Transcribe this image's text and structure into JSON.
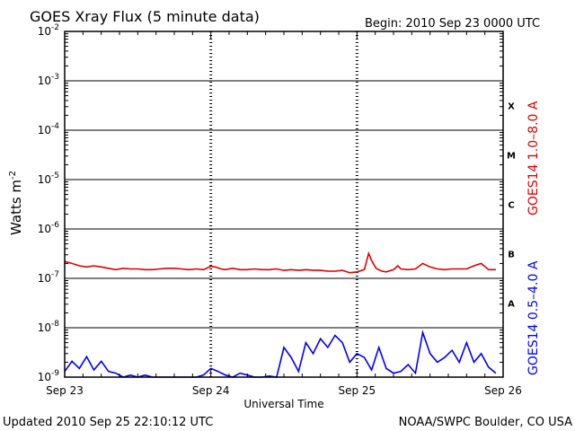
{
  "header": {
    "title": "GOES Xray Flux (5 minute data)",
    "begin": "Begin:  2010 Sep 23 0000 UTC"
  },
  "footer": {
    "updated": "Updated 2010 Sep 25 22:10:12 UTC",
    "credit": "NOAA/SWPC Boulder, CO USA"
  },
  "colors": {
    "long": "#dd0000",
    "short": "#0000ff",
    "axis": "#000000"
  },
  "chart_data": {
    "type": "line",
    "title": "GOES Xray Flux (5 minute data)",
    "xlabel": "Universal Time",
    "ylabel_base": "Watts m",
    "ylabel_exp": "-2",
    "y_scale": "log",
    "ylim": [
      1e-09,
      0.01
    ],
    "xlim_days": [
      "Sep 23",
      "Sep 26"
    ],
    "x_ticks": [
      "Sep 23",
      "Sep 24",
      "Sep 25",
      "Sep 26"
    ],
    "y_ticks": [
      {
        "mantissa": "10",
        "exp": "-9"
      },
      {
        "mantissa": "10",
        "exp": "-8"
      },
      {
        "mantissa": "10",
        "exp": "-7"
      },
      {
        "mantissa": "10",
        "exp": "-6"
      },
      {
        "mantissa": "10",
        "exp": "-5"
      },
      {
        "mantissa": "10",
        "exp": "-4"
      },
      {
        "mantissa": "10",
        "exp": "-3"
      },
      {
        "mantissa": "10",
        "exp": "-2"
      }
    ],
    "flare_classes": [
      "A",
      "B",
      "C",
      "M",
      "X"
    ],
    "grid": true,
    "series": [
      {
        "name": "GOES14 1.0–8.0 A",
        "x": [
          0,
          0.05,
          0.1,
          0.15,
          0.2,
          0.25,
          0.3,
          0.35,
          0.4,
          0.45,
          0.5,
          0.55,
          0.6,
          0.65,
          0.7,
          0.75,
          0.8,
          0.85,
          0.9,
          0.95,
          1.0,
          1.03,
          1.07,
          1.1,
          1.15,
          1.2,
          1.25,
          1.3,
          1.35,
          1.4,
          1.45,
          1.5,
          1.55,
          1.6,
          1.65,
          1.7,
          1.75,
          1.8,
          1.85,
          1.9,
          1.95,
          2.0,
          2.05,
          2.08,
          2.1,
          2.13,
          2.17,
          2.2,
          2.25,
          2.28,
          2.3,
          2.35,
          2.4,
          2.45,
          2.5,
          2.55,
          2.6,
          2.65,
          2.7,
          2.75,
          2.8,
          2.85,
          2.9,
          2.95
        ],
        "y": [
          2.2e-07,
          2e-07,
          1.8e-07,
          1.7e-07,
          1.8e-07,
          1.7e-07,
          1.6e-07,
          1.5e-07,
          1.6e-07,
          1.55e-07,
          1.55e-07,
          1.5e-07,
          1.5e-07,
          1.55e-07,
          1.6e-07,
          1.6e-07,
          1.55e-07,
          1.5e-07,
          1.55e-07,
          1.5e-07,
          1.75e-07,
          1.7e-07,
          1.55e-07,
          1.5e-07,
          1.6e-07,
          1.5e-07,
          1.5e-07,
          1.55e-07,
          1.5e-07,
          1.5e-07,
          1.55e-07,
          1.45e-07,
          1.5e-07,
          1.45e-07,
          1.5e-07,
          1.45e-07,
          1.45e-07,
          1.4e-07,
          1.4e-07,
          1.45e-07,
          1.3e-07,
          1.35e-07,
          1.5e-07,
          3.2e-07,
          2.3e-07,
          1.6e-07,
          1.4e-07,
          1.35e-07,
          1.5e-07,
          1.8e-07,
          1.55e-07,
          1.5e-07,
          1.55e-07,
          2e-07,
          1.7e-07,
          1.55e-07,
          1.5e-07,
          1.55e-07,
          1.55e-07,
          1.55e-07,
          1.8e-07,
          2e-07,
          1.5e-07,
          1.5e-07
        ]
      },
      {
        "name": "GOES14 0.5–4.0 A",
        "x": [
          0,
          0.05,
          0.1,
          0.15,
          0.2,
          0.25,
          0.3,
          0.35,
          0.4,
          0.45,
          0.5,
          0.55,
          0.6,
          0.65,
          0.7,
          0.75,
          0.8,
          0.85,
          0.9,
          0.95,
          1.0,
          1.05,
          1.1,
          1.15,
          1.2,
          1.25,
          1.3,
          1.35,
          1.4,
          1.45,
          1.5,
          1.55,
          1.6,
          1.65,
          1.7,
          1.75,
          1.8,
          1.85,
          1.9,
          1.95,
          2.0,
          2.05,
          2.1,
          2.15,
          2.2,
          2.25,
          2.3,
          2.35,
          2.4,
          2.45,
          2.5,
          2.55,
          2.6,
          2.65,
          2.7,
          2.75,
          2.8,
          2.85,
          2.9,
          2.95
        ],
        "y": [
          1.3e-09,
          2.1e-09,
          1.5e-09,
          2.6e-09,
          1.4e-09,
          2.1e-09,
          1.3e-09,
          1.2e-09,
          1e-09,
          1.1e-09,
          1e-09,
          1.1e-09,
          1e-09,
          1e-09,
          1e-09,
          1e-09,
          1e-09,
          1e-09,
          1e-09,
          1.1e-09,
          1.5e-09,
          1.3e-09,
          1.1e-09,
          1e-09,
          1.2e-09,
          1.1e-09,
          1e-09,
          1e-09,
          1.05e-09,
          1e-09,
          4e-09,
          2.5e-09,
          1.3e-09,
          5e-09,
          3e-09,
          6e-09,
          4e-09,
          7e-09,
          5e-09,
          2e-09,
          3e-09,
          2.5e-09,
          1.4e-09,
          4e-09,
          1.5e-09,
          1.2e-09,
          1.3e-09,
          1.8e-09,
          1.2e-09,
          8e-09,
          3e-09,
          2e-09,
          2.5e-09,
          3.5e-09,
          2e-09,
          5e-09,
          2e-09,
          3e-09,
          1.6e-09,
          1.2e-09
        ]
      }
    ]
  }
}
